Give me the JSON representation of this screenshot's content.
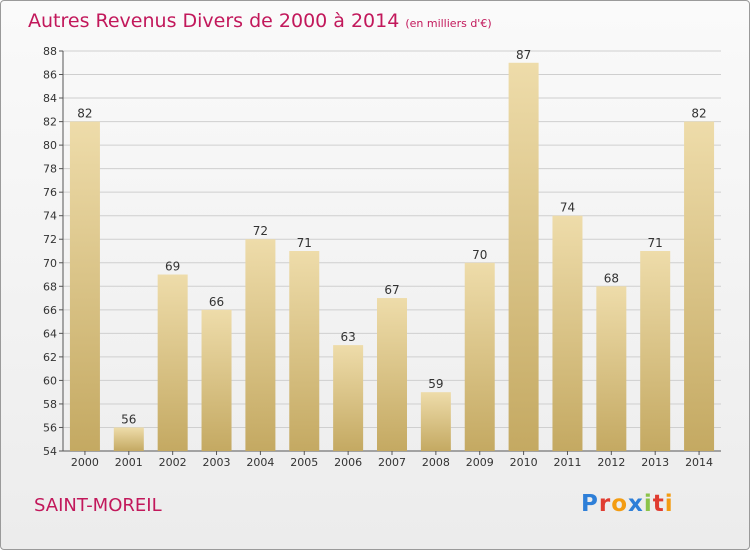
{
  "title": "Autres Revenus Divers de 2000 à 2014",
  "title_unit": "(en milliers d'€)",
  "town": "SAINT-MOREIL",
  "logo": "Proxiti",
  "colors": {
    "title": "#c2185b",
    "bar_light": "#eedcaa",
    "bar_dark": "#c4a962",
    "grid": "#cfcfcf",
    "logo_letters": [
      "#2e7fd8",
      "#e03c31",
      "#f39c12",
      "#2e7fd8",
      "#8bc34a",
      "#e03c31",
      "#f39c12"
    ]
  },
  "chart_data": {
    "type": "bar",
    "title": "Autres Revenus Divers de 2000 à 2014",
    "categories": [
      "2000",
      "2001",
      "2002",
      "2003",
      "2004",
      "2005",
      "2006",
      "2007",
      "2008",
      "2009",
      "2010",
      "2011",
      "2012",
      "2013",
      "2014"
    ],
    "values": [
      82,
      56,
      69,
      66,
      72,
      71,
      63,
      67,
      59,
      70,
      87,
      74,
      68,
      71,
      82
    ],
    "ylim": [
      54,
      88
    ],
    "yticks": [
      54,
      56,
      58,
      60,
      62,
      64,
      66,
      68,
      70,
      72,
      74,
      76,
      78,
      80,
      82,
      84,
      86,
      88
    ],
    "grid": true,
    "data_labels": true
  }
}
